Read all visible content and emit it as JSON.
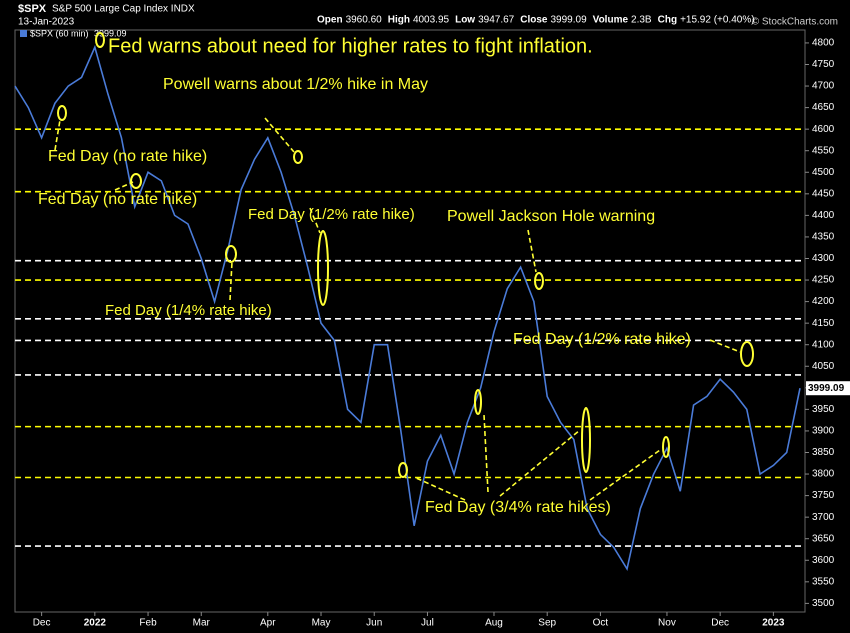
{
  "chart_data": {
    "type": "line",
    "title": "$SPX",
    "subtitle": "S&P 500 Large Cap Index INDX",
    "date": "13-Jan-2023",
    "quote": [
      [
        "Open",
        "3960.60"
      ],
      [
        "High",
        "4003.95"
      ],
      [
        "Low",
        "3947.67"
      ],
      [
        "Close",
        "3999.09"
      ],
      [
        "Volume",
        "2.3B"
      ],
      [
        "Chg",
        "+15.92 (+0.40%)"
      ]
    ],
    "watermark": "© StockCharts.com",
    "categories": [
      null,
      null,
      "Dec",
      null,
      null,
      null,
      "2022",
      null,
      null,
      null,
      "Feb",
      null,
      null,
      null,
      "Mar",
      null,
      null,
      null,
      null,
      "Apr",
      null,
      null,
      null,
      "May",
      null,
      null,
      null,
      "Jun",
      null,
      null,
      null,
      "Jul",
      null,
      null,
      null,
      null,
      "Aug",
      null,
      null,
      null,
      "Sep",
      null,
      null,
      null,
      "Oct",
      null,
      null,
      null,
      null,
      "Nov",
      null,
      null,
      null,
      "Dec",
      null,
      null,
      null,
      "2023",
      null,
      null
    ],
    "series": [
      {
        "name": "$SPX (60 min)",
        "color": "#4a7bd8",
        "values": [
          4700,
          4650,
          4580,
          4660,
          4700,
          4720,
          4790,
          4680,
          4580,
          4420,
          4500,
          4480,
          4400,
          4380,
          4300,
          4200,
          4320,
          4460,
          4530,
          4580,
          4500,
          4400,
          4280,
          4150,
          4110,
          3950,
          3920,
          4100,
          4100,
          3900,
          3680,
          3830,
          3890,
          3800,
          3920,
          4000,
          4130,
          4230,
          4280,
          4200,
          3980,
          3920,
          3880,
          3720,
          3660,
          3630,
          3580,
          3720,
          3800,
          3860,
          3760,
          3960,
          3980,
          4020,
          3990,
          3950,
          3800,
          3820,
          3850,
          3999.09
        ]
      }
    ],
    "ylim": [
      3480,
      4830
    ],
    "yticks": [
      3500,
      3550,
      3600,
      3650,
      3700,
      3750,
      3800,
      3850,
      3900,
      3950,
      4000,
      4050,
      4100,
      4150,
      4200,
      4250,
      4300,
      4350,
      4400,
      4450,
      4500,
      4550,
      4600,
      4650,
      4700,
      4750,
      4800
    ],
    "grid": false,
    "levels": [
      {
        "value": 4600,
        "color": "#ffff00"
      },
      {
        "value": 4455,
        "color": "#ffff00"
      },
      {
        "value": 4250,
        "color": "#ffff00"
      },
      {
        "value": 3910,
        "color": "#ffff00"
      },
      {
        "value": 3792,
        "color": "#ffff00"
      },
      {
        "value": 4295,
        "color": "#ffffff"
      },
      {
        "value": 4160,
        "color": "#ffffff"
      },
      {
        "value": 4110,
        "color": "#ffffff"
      },
      {
        "value": 4030,
        "color": "#ffffff"
      },
      {
        "value": 3633,
        "color": "#ffffff"
      }
    ],
    "annotations": [
      "Fed warns about need for higher rates to fight inflation.",
      "Powell warns about 1/2% hike in May",
      "Fed Day (no rate hike)",
      "Fed Day (no rate hike)",
      "Fed Day (1/2% rate hike)",
      "Powell Jackson Hole warning",
      "Fed Day (1/4% rate hike)",
      "Fed Day (1/2% rate hike)",
      "Fed Day (3/4% rate hikes)"
    ]
  }
}
